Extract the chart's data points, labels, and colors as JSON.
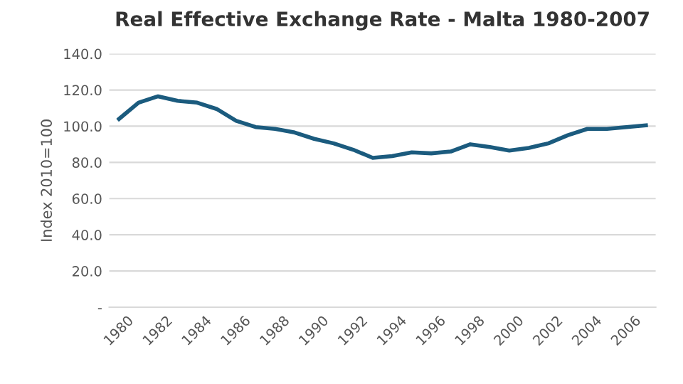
{
  "chart_data": {
    "type": "line",
    "title": "Real Effective Exchange Rate - Malta 1980-2007",
    "ylabel": "Index 2010=100",
    "categories": [
      "1980",
      null,
      "1982",
      null,
      "1984",
      null,
      "1986",
      null,
      "1988",
      null,
      "1990",
      null,
      "1992",
      null,
      "1994",
      null,
      "1996",
      null,
      "1998",
      null,
      "2000",
      null,
      "2002",
      null,
      "2004",
      null,
      "2006",
      null
    ],
    "series": [
      {
        "color": "#1b5b7e",
        "values": [
          104,
          113,
          116.5,
          114,
          113,
          109.5,
          103,
          99.5,
          98.5,
          96.5,
          93,
          90.5,
          87,
          82.5,
          83.5,
          85.5,
          85,
          86,
          90,
          88.5,
          86.5,
          88,
          90.5,
          95,
          98.5,
          98.5,
          99.5,
          100.5
        ]
      }
    ],
    "ylim": [
      0,
      140
    ],
    "yticks": [
      {
        "value": 0,
        "label": "-"
      },
      {
        "value": 20,
        "label": "20.0"
      },
      {
        "value": 40,
        "label": "40.0"
      },
      {
        "value": 60,
        "label": "60.0"
      },
      {
        "value": 80,
        "label": "80.0"
      },
      {
        "value": 100,
        "label": "100.0"
      },
      {
        "value": 120,
        "label": "120.0"
      },
      {
        "value": 140,
        "label": "140.0"
      }
    ],
    "grid": "y",
    "legend": false,
    "marker": "none",
    "line_style": "solid"
  }
}
